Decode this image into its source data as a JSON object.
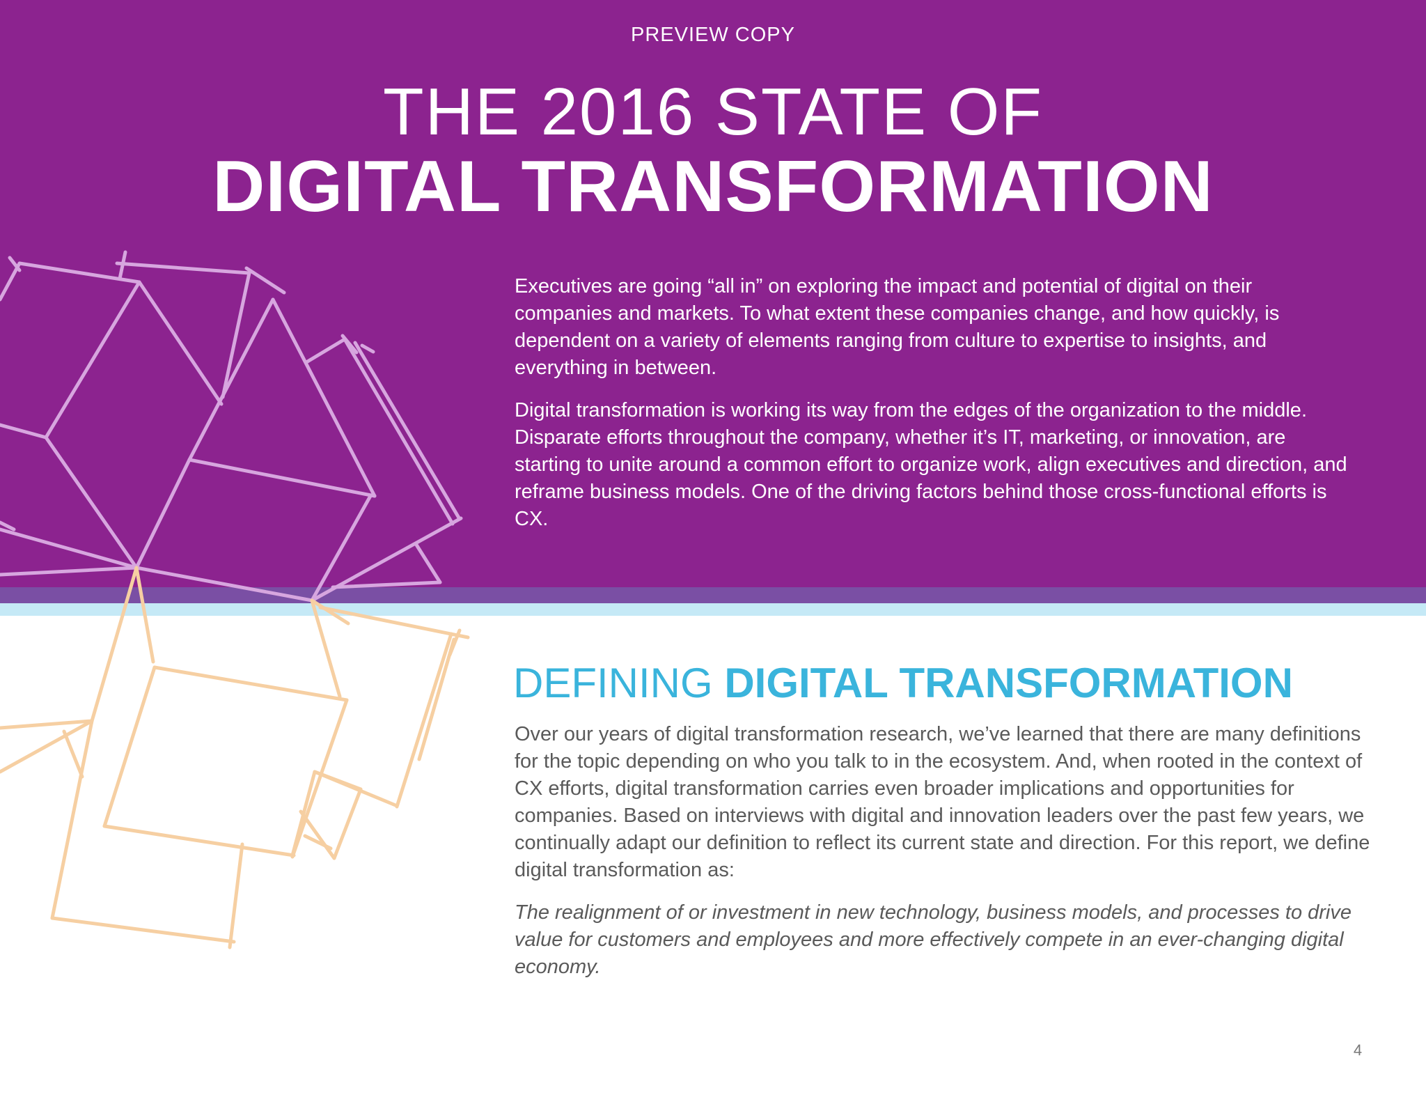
{
  "header": {
    "preview_label": "PREVIEW COPY",
    "title_line1": "THE 2016 STATE OF",
    "title_line2": "DIGITAL TRANSFORMATION"
  },
  "intro": {
    "paragraph1": "Executives are going “all in” on exploring the impact and potential of digital on their companies and markets. To what extent these companies change, and how quickly, is dependent on a variety of elements ranging from culture to expertise to insights, and everything in between.",
    "paragraph2": "Digital transformation is working its way from the edges of the organization to the middle. Disparate efforts throughout the company, whether it’s IT, marketing, or innovation, are starting to unite around a common effort to organize work, align executives and direction, and reframe business models. One of the driving factors behind those cross-functional efforts is CX."
  },
  "section": {
    "heading_light": "DEFINING ",
    "heading_bold": "DIGITAL TRANSFORMATION",
    "paragraph": "Over our years of digital transformation research, we’ve learned that there are many definitions for the topic depending on who you talk to in the ecosystem. And, when rooted in the context of CX efforts, digital transformation carries even broader implications and opportunities for companies. Based on interviews with digital and innovation leaders over the past few years, we continually adapt our definition to reflect its current state and direction. For this report, we define digital transformation as:",
    "definition": "The realignment of or investment in new technology, business models, and processes to drive value for customers and employees and more effectively compete in an ever-changing digital economy."
  },
  "page_number": "4",
  "colors": {
    "purple_band": "#8c238f",
    "violet_band": "#7a4fa4",
    "cyan_band": "#c5e9f6",
    "heading_cyan": "#3ab4dc",
    "upper_lines": "#d7a6df",
    "lower_lines": "#f6cfa2"
  }
}
